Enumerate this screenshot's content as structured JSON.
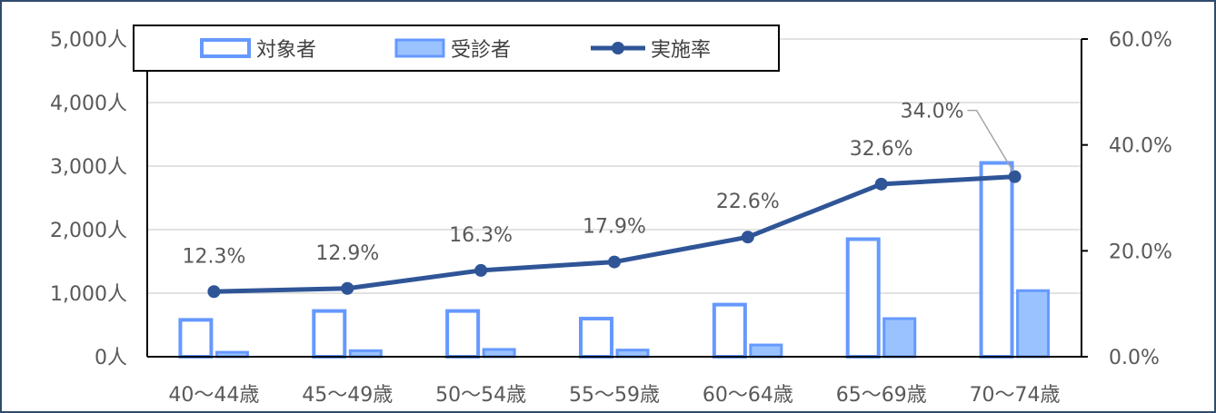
{
  "chart_data": {
    "type": "bar",
    "categories": [
      "40～44歳",
      "45～49歳",
      "50～54歳",
      "55～59歳",
      "60～64歳",
      "65～69歳",
      "70～74歳"
    ],
    "series": [
      {
        "name": "対象者",
        "kind": "bar",
        "axis": "left",
        "style": "outline",
        "values": [
          580,
          720,
          720,
          600,
          820,
          1850,
          3050
        ],
        "color": "#6699ff"
      },
      {
        "name": "受診者",
        "kind": "bar",
        "axis": "left",
        "style": "filled",
        "values": [
          70,
          95,
          115,
          105,
          185,
          600,
          1040
        ],
        "color": "#99c2ff"
      },
      {
        "name": "実施率",
        "kind": "line",
        "axis": "right",
        "values": [
          12.3,
          12.9,
          16.3,
          17.9,
          22.6,
          32.6,
          34.0
        ],
        "labels": [
          "12.3%",
          "12.9%",
          "16.3%",
          "17.9%",
          "22.6%",
          "32.6%",
          "34.0%"
        ],
        "color": "#2f5597"
      }
    ],
    "left_axis": {
      "ylim": [
        0,
        5000
      ],
      "tick_labels": [
        "0人",
        "1,000人",
        "2,000人",
        "3,000人",
        "4,000人",
        "5,000人"
      ]
    },
    "right_axis": {
      "ylim": [
        0,
        60
      ],
      "tick_labels": [
        "0.0%",
        "20.0%",
        "40.0%",
        "60.0%"
      ]
    },
    "grid": true,
    "legend": "top-left",
    "title": "",
    "xlabel": "",
    "ylabel": ""
  }
}
